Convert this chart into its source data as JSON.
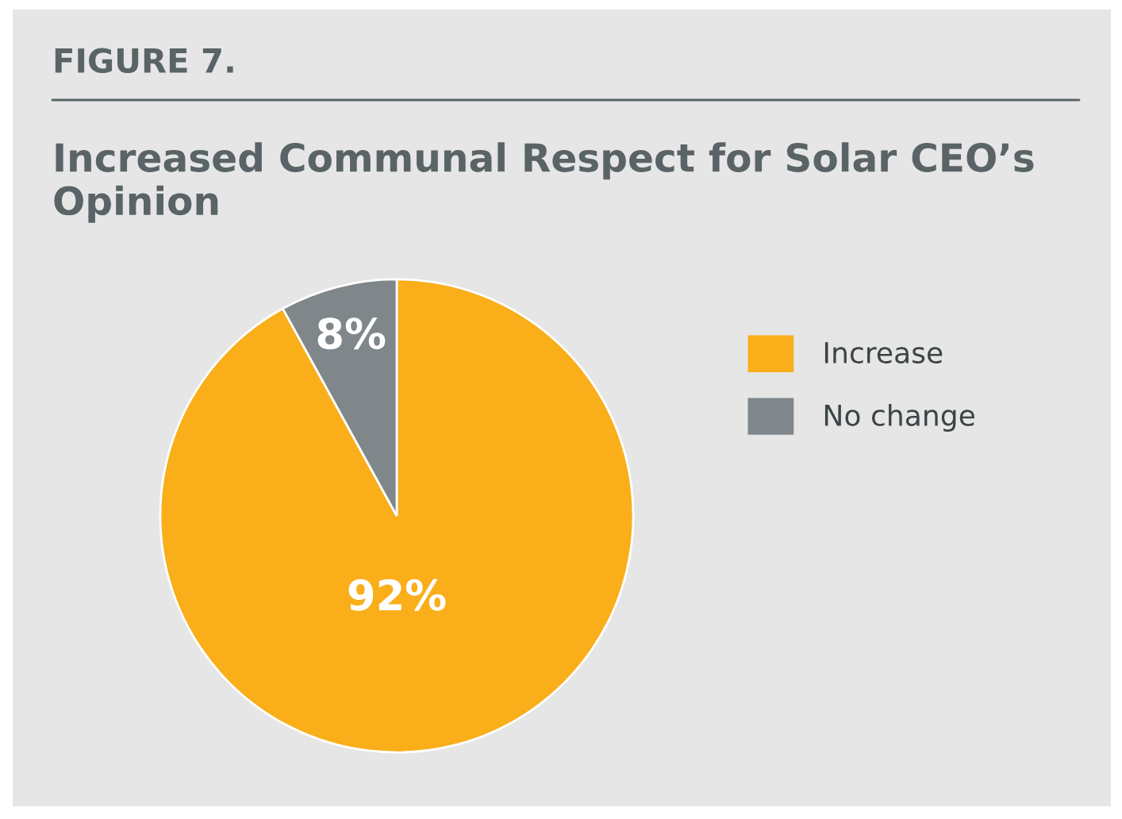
{
  "chart_data": {
    "type": "pie",
    "title": "FIGURE 7.",
    "subtitle": "Increased Communal Respect for Solar CEO’s Opinion",
    "categories": [
      "Increase",
      "No change"
    ],
    "values": [
      92,
      8
    ],
    "colors": [
      "#f9ae1a",
      "#7f878a"
    ],
    "value_labels": [
      "92%",
      "8%"
    ],
    "legend": "right"
  }
}
